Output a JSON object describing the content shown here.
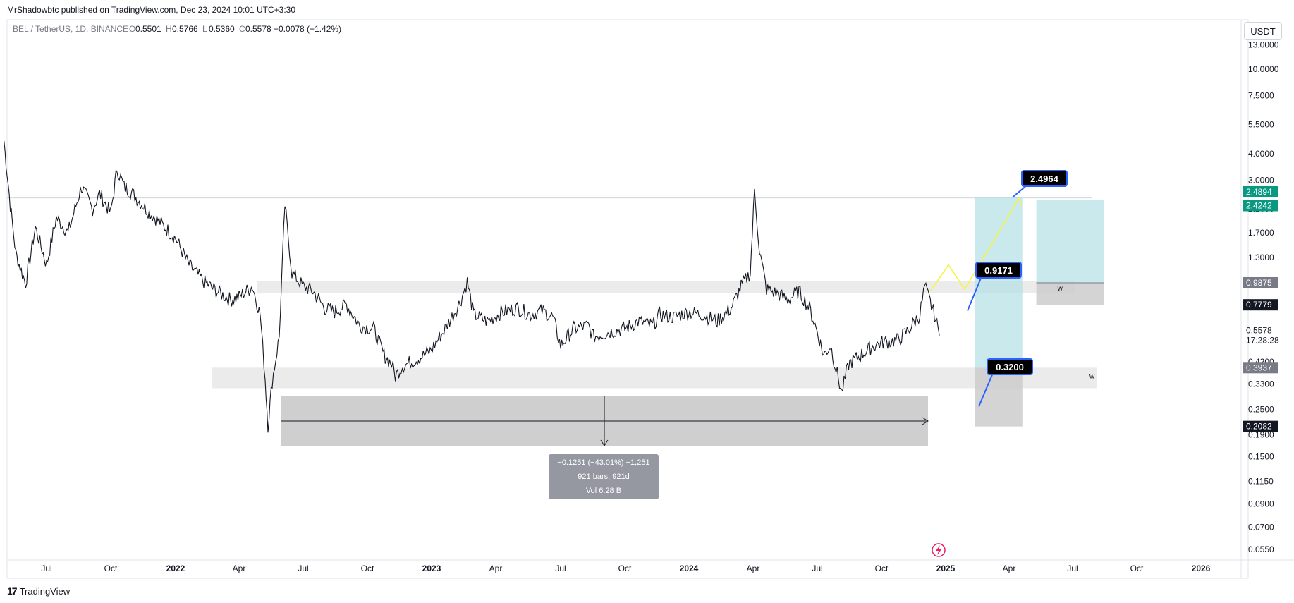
{
  "header": {
    "published": "MrShadowbtc published on TradingView.com, Dec 23, 2024 10:01 UTC+3:30",
    "symbol": "BEL / TetherUS, 1D, BINANCE",
    "ohlc": [
      {
        "k": "O",
        "v": "0.5501"
      },
      {
        "k": "H",
        "v": "0.5766"
      },
      {
        "k": "L",
        "v": "0.5360"
      },
      {
        "k": "C",
        "v": "0.5578"
      }
    ],
    "change": "+0.0078 (+1.42%)"
  },
  "currency_button": "USDT",
  "footer": {
    "brand": "TradingView",
    "logo": "17"
  },
  "colors": {
    "price_line": "#131722",
    "target_zone": "#b2e0e6",
    "stop_zone": "#cccccc",
    "zone_band": "#ebebeb",
    "projection": "#f5f542",
    "label_bg": "#000000",
    "label_border": "#2962ff",
    "price_tag": "#089981"
  },
  "chart_data": {
    "type": "line",
    "title": "",
    "y_scale": "log",
    "ylim": [
      0.0505,
      15.0
    ],
    "y_ticks": [
      "13.0000",
      "10.0000",
      "7.5000",
      "5.5000",
      "4.0000",
      "3.0000",
      "2.2000",
      "1.7000",
      "1.3000",
      "0.4200",
      "0.3300",
      "0.2500",
      "0.1900",
      "0.1500",
      "0.1150",
      "0.0900",
      "0.0700",
      "0.0550"
    ],
    "x_ticks": [
      {
        "label": "Jul",
        "major": false
      },
      {
        "label": "Oct",
        "major": false
      },
      {
        "label": "2022",
        "major": true
      },
      {
        "label": "Apr",
        "major": false
      },
      {
        "label": "Jul",
        "major": false
      },
      {
        "label": "Oct",
        "major": false
      },
      {
        "label": "2023",
        "major": true
      },
      {
        "label": "Apr",
        "major": false
      },
      {
        "label": "Jul",
        "major": false
      },
      {
        "label": "Oct",
        "major": false
      },
      {
        "label": "2024",
        "major": true
      },
      {
        "label": "Apr",
        "major": false
      },
      {
        "label": "Jul",
        "major": false
      },
      {
        "label": "Oct",
        "major": false
      },
      {
        "label": "2025",
        "major": true
      },
      {
        "label": "Apr",
        "major": false
      },
      {
        "label": "Jul",
        "major": false
      },
      {
        "label": "Oct",
        "major": false
      },
      {
        "label": "2026",
        "major": true
      }
    ],
    "series": [
      {
        "x": [
          "2021-05-01",
          "2021-05-10",
          "2021-05-18",
          "2021-06-01",
          "2021-06-15",
          "2021-07-01",
          "2021-07-15",
          "2021-08-01",
          "2021-08-20",
          "2021-09-05",
          "2021-09-15",
          "2021-10-01",
          "2021-10-10",
          "2021-10-20",
          "2021-11-01",
          "2021-11-20",
          "2021-12-10",
          "2022-01-01",
          "2022-01-20",
          "2022-02-10",
          "2022-03-01",
          "2022-03-20",
          "2022-04-01",
          "2022-04-20",
          "2022-05-01",
          "2022-05-08",
          "2022-05-12",
          "2022-05-18",
          "2022-05-28",
          "2022-06-05",
          "2022-06-15",
          "2022-07-01",
          "2022-07-15",
          "2022-08-01",
          "2022-08-15",
          "2022-09-01",
          "2022-09-20",
          "2022-10-10",
          "2022-10-25",
          "2022-11-05",
          "2022-11-10",
          "2022-11-20",
          "2022-12-10",
          "2022-12-30",
          "2023-01-20",
          "2023-02-10",
          "2023-02-20",
          "2023-03-01",
          "2023-03-20",
          "2023-04-10",
          "2023-05-01",
          "2023-05-20",
          "2023-06-05",
          "2023-06-20",
          "2023-07-01",
          "2023-07-20",
          "2023-08-10",
          "2023-08-17",
          "2023-09-10",
          "2023-10-01",
          "2023-10-20",
          "2023-11-10",
          "2023-11-20",
          "2023-12-10",
          "2023-12-30",
          "2024-01-20",
          "2024-02-10",
          "2024-03-01",
          "2024-03-15",
          "2024-03-28",
          "2024-04-03",
          "2024-04-10",
          "2024-04-20",
          "2024-05-05",
          "2024-05-20",
          "2024-06-05",
          "2024-06-20",
          "2024-07-01",
          "2024-07-10",
          "2024-07-20",
          "2024-08-05",
          "2024-08-15",
          "2024-09-01",
          "2024-09-20",
          "2024-10-05",
          "2024-10-25",
          "2024-11-10",
          "2024-11-25",
          "2024-12-02",
          "2024-12-10",
          "2024-12-16",
          "2024-12-23"
        ],
        "values": [
          4.6,
          2.3,
          1.35,
          0.98,
          1.8,
          1.2,
          2.0,
          1.7,
          2.8,
          2.2,
          2.6,
          2.1,
          3.4,
          2.8,
          2.6,
          2.2,
          1.9,
          1.6,
          1.2,
          1.0,
          0.9,
          0.82,
          0.85,
          0.95,
          0.7,
          0.35,
          0.21,
          0.34,
          0.55,
          2.3,
          1.1,
          0.95,
          0.9,
          0.75,
          0.72,
          0.78,
          0.62,
          0.6,
          0.45,
          0.41,
          0.36,
          0.4,
          0.43,
          0.47,
          0.6,
          0.8,
          1.0,
          0.7,
          0.65,
          0.72,
          0.75,
          0.7,
          0.73,
          0.68,
          0.5,
          0.6,
          0.62,
          0.55,
          0.58,
          0.6,
          0.65,
          0.62,
          0.7,
          0.68,
          0.72,
          0.7,
          0.65,
          0.75,
          0.95,
          1.1,
          2.7,
          1.4,
          0.92,
          0.88,
          0.82,
          0.9,
          0.75,
          0.58,
          0.45,
          0.5,
          0.3,
          0.41,
          0.45,
          0.5,
          0.52,
          0.53,
          0.6,
          0.7,
          0.95,
          0.8,
          0.7,
          0.5578
        ]
      }
    ]
  },
  "annotations": {
    "projection_path": {
      "x": [
        "2024-12-10",
        "2025-01-05",
        "2025-01-28",
        "2025-04-16"
      ],
      "values": [
        0.9,
        1.2,
        0.92,
        2.4964
      ]
    },
    "zone_lines": [
      {
        "label": "w",
        "value": 0.9875
      },
      {
        "label": "w",
        "value": 0.3937
      }
    ],
    "callouts": [
      {
        "label": "2.4964",
        "value": 2.4964
      },
      {
        "label": "0.9171",
        "value": 0.9171
      },
      {
        "label": "0.3200",
        "value": 0.32
      }
    ],
    "price_tags": [
      {
        "label": "2.4894",
        "value": 2.4894,
        "style": "teal"
      },
      {
        "label": "2.4242",
        "value": 2.4242,
        "style": "teal"
      },
      {
        "label": "0.9875",
        "value": 0.9875,
        "style": "gray"
      },
      {
        "label": "0.7779",
        "value": 0.7779,
        "style": "dark"
      },
      {
        "label": "0.5578",
        "value": 0.5578,
        "style": "plain"
      },
      {
        "label": "17:28:28",
        "value": 0.5578,
        "style": "plain-sub"
      },
      {
        "label": "0.3937",
        "value": 0.3937,
        "style": "gray"
      },
      {
        "label": "0.2082",
        "value": 0.2082,
        "style": "dark"
      }
    ],
    "measure_box": {
      "line1": "−0.1251 (−43.01%) −1,251",
      "line2": "921 bars, 921d",
      "line3": "Vol 6.28 B"
    }
  }
}
